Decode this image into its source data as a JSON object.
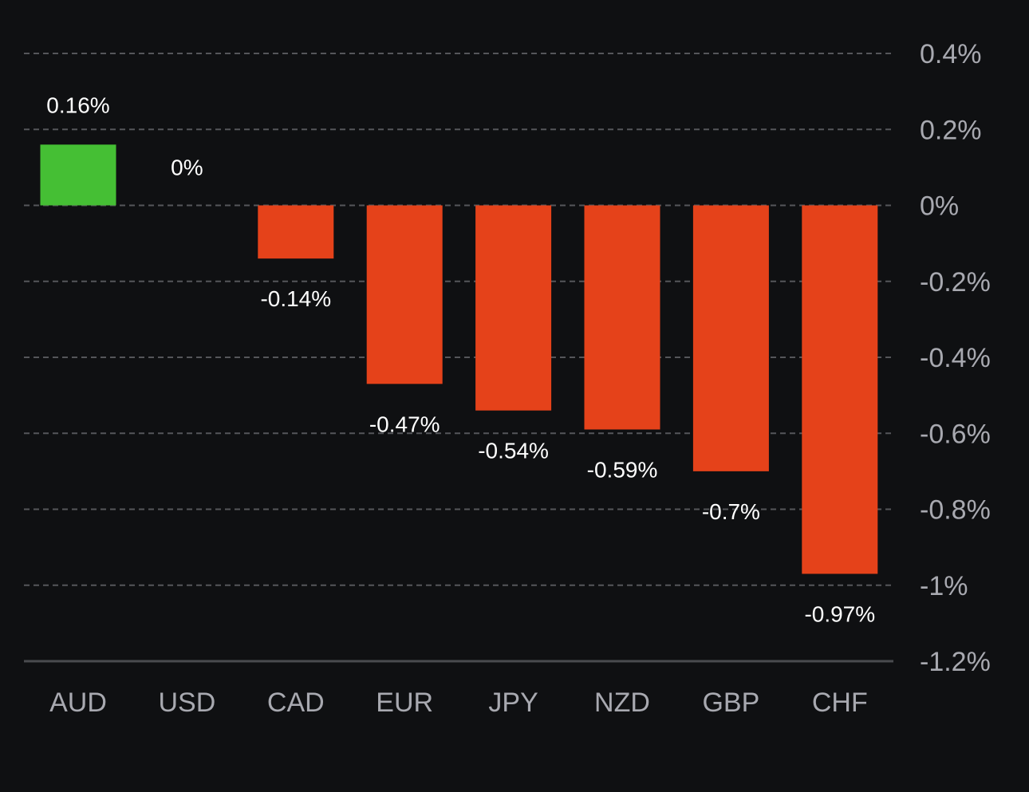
{
  "chart_data": {
    "type": "bar",
    "title": "",
    "xlabel": "",
    "ylabel": "",
    "categories": [
      "AUD",
      "USD",
      "CAD",
      "EUR",
      "JPY",
      "NZD",
      "GBP",
      "CHF"
    ],
    "values": [
      0.16,
      0,
      -0.14,
      -0.47,
      -0.54,
      -0.59,
      -0.7,
      -0.97
    ],
    "data_labels": [
      "0.16%",
      "0%",
      "-0.14%",
      "-0.47%",
      "-0.54%",
      "-0.59%",
      "-0.7%",
      "-0.97%"
    ],
    "ylim": [
      -1.2,
      0.4
    ],
    "yticks": [
      0.4,
      0.2,
      0,
      -0.2,
      -0.4,
      -0.6,
      -0.8,
      -1,
      -1.2
    ],
    "ytick_labels": [
      "0.4%",
      "0.2%",
      "0%",
      "-0.2%",
      "-0.4%",
      "-0.6%",
      "-0.8%",
      "-1%",
      "-1.2%"
    ],
    "y_axis_position": "right",
    "grid": true,
    "legend": "none",
    "colors": {
      "positive": "#45bf34",
      "negative": "#e5421a",
      "background": "#0f1012",
      "grid": "#55565a",
      "baseline": "#4a4b4f",
      "tick_text": "#a8a9b0",
      "label_text": "#ffffff"
    }
  }
}
